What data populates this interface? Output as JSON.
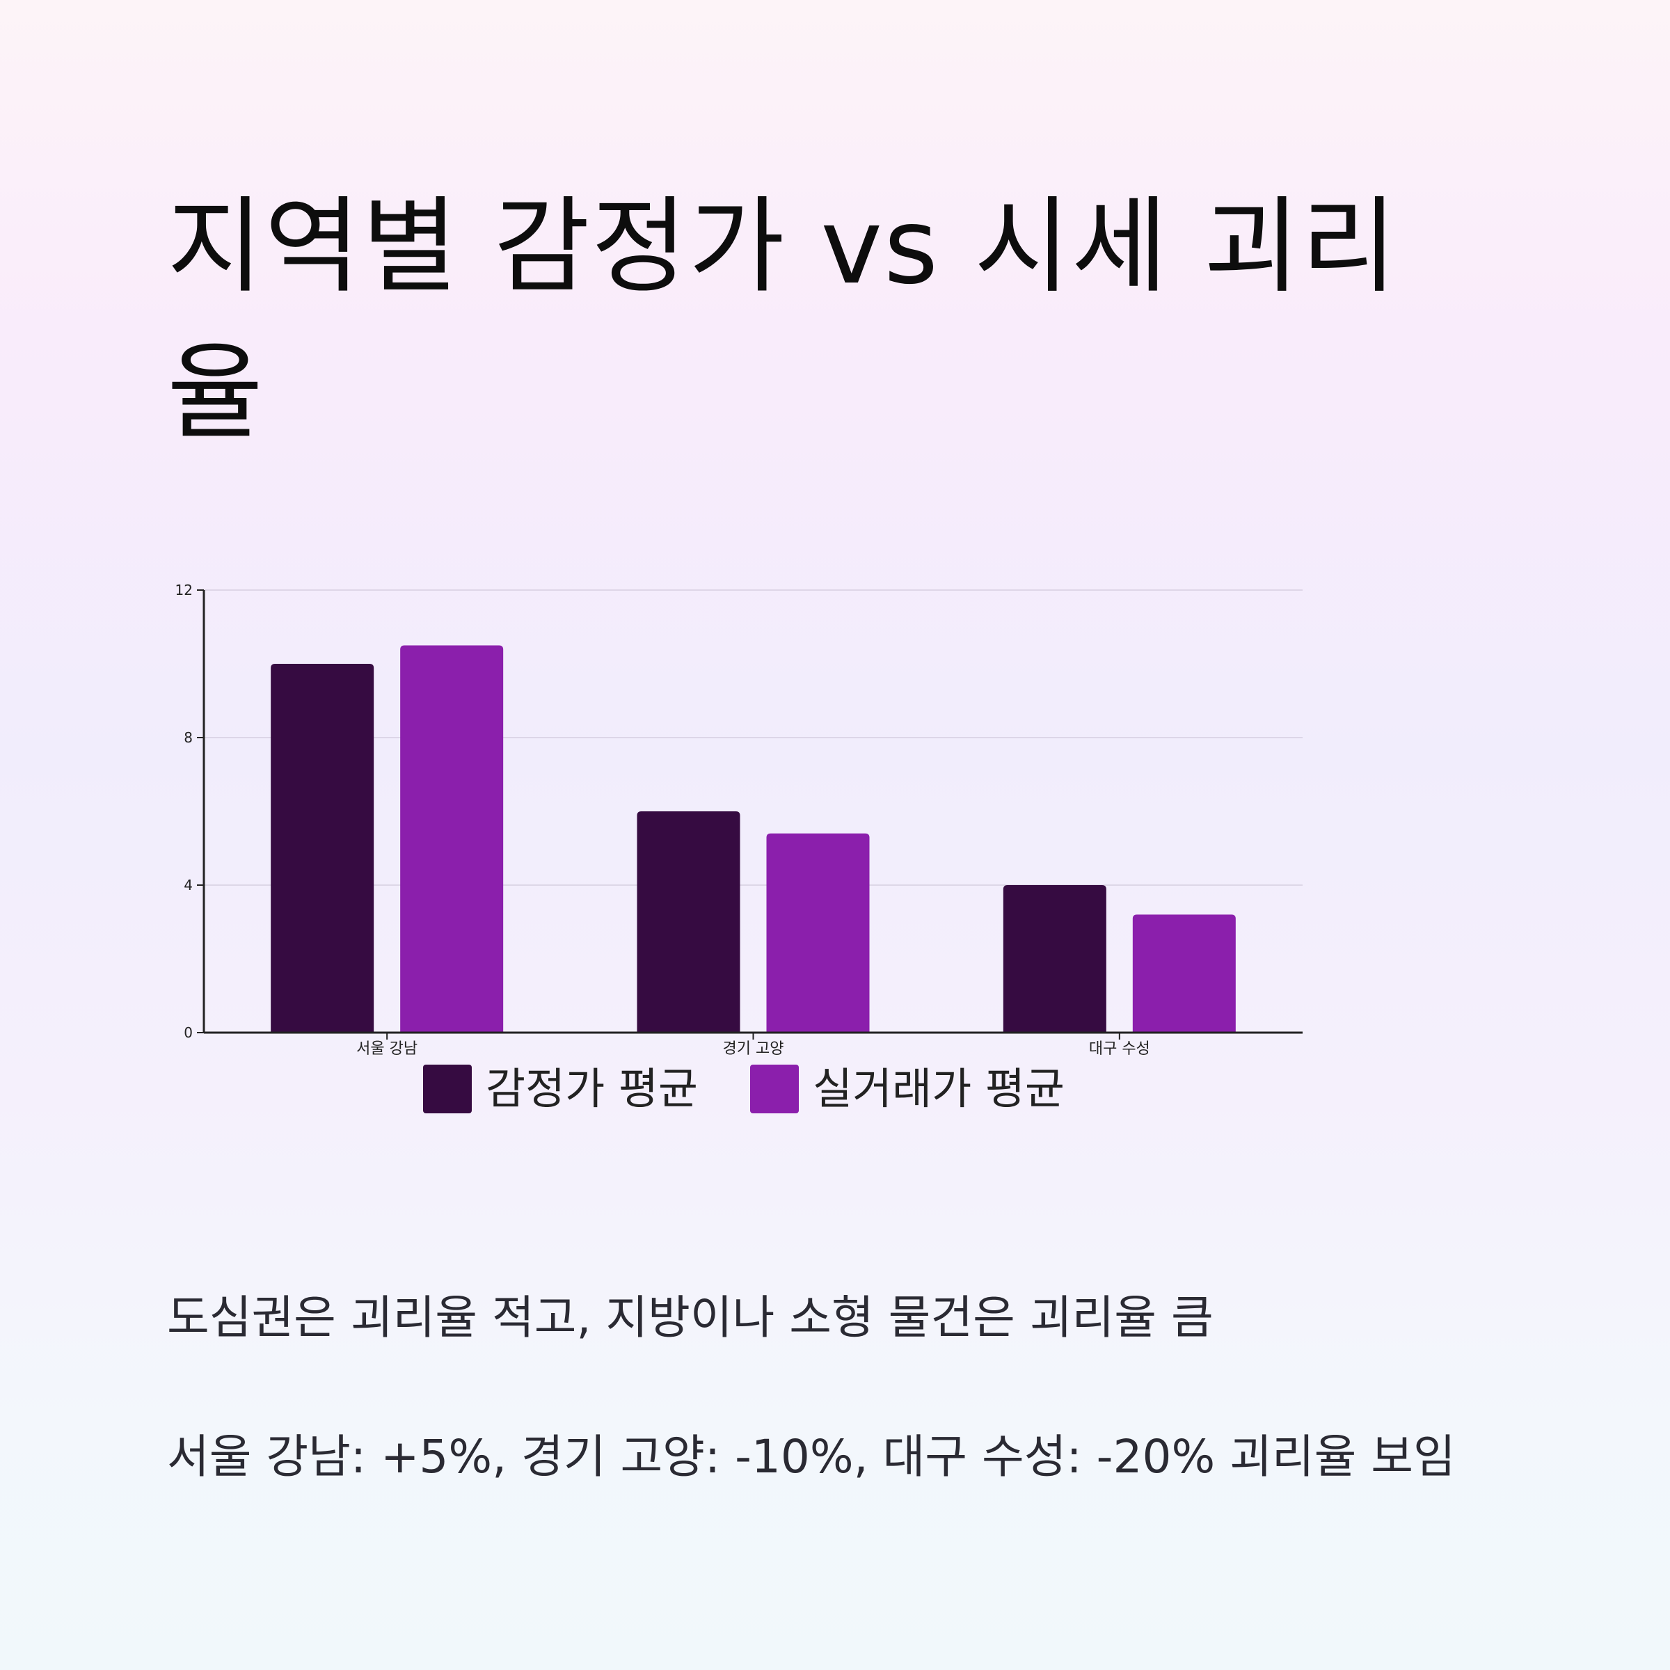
{
  "title": "지역별 감정가 vs 시세 괴리율",
  "colors": {
    "appraisal": "#360b41",
    "actual": "#8b1fac",
    "grid": "#d6cfe0",
    "axis": "#222222"
  },
  "chart_data": {
    "type": "bar",
    "categories": [
      "서울 강남",
      "경기 고양",
      "대구 수성"
    ],
    "series": [
      {
        "name": "감정가 평균",
        "values": [
          10,
          6,
          4
        ]
      },
      {
        "name": "실거래가 평균",
        "values": [
          10.5,
          5.4,
          3.2
        ]
      }
    ],
    "yticks": [
      0,
      4,
      8,
      12
    ],
    "ylim": [
      0,
      12
    ],
    "grid": true,
    "legend": "bottom"
  },
  "notes": [
    "도심권은 괴리율 적고, 지방이나 소형 물건은 괴리율 큼",
    "서울 강남: +5%, 경기 고양: -10%, 대구 수성: -20% 괴리율 보임"
  ]
}
